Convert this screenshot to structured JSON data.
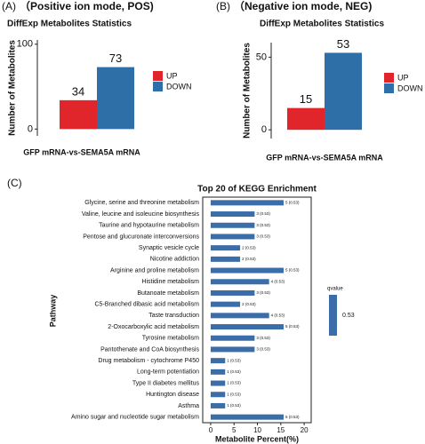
{
  "chart_data": [
    {
      "type": "bar",
      "panel": "(A)",
      "subtitle": "（Positive ion mode, POS)",
      "title": "DiffExp Metabolites Statistics",
      "y_label": "Number of Metabolites",
      "categories": [
        "GFP mRNA-vs-SEMA5A mRNA"
      ],
      "series": [
        {
          "name": "UP",
          "color": "#e0262a",
          "values": [
            34
          ]
        },
        {
          "name": "DOWN",
          "color": "#2f6fa7",
          "values": [
            73
          ]
        }
      ],
      "ylim": [
        -8,
        105
      ],
      "yticks": [
        0,
        100
      ]
    },
    {
      "type": "bar",
      "panel": "(B)",
      "subtitle": "（Negative ion mode, NEG)",
      "title": "DiffExp Metabolites Statistics",
      "y_label": "Number of Metabolites",
      "categories": [
        "GFP mRNA-vs-SEMA5A mRNA"
      ],
      "series": [
        {
          "name": "UP",
          "color": "#e0262a",
          "values": [
            15
          ]
        },
        {
          "name": "DOWN",
          "color": "#2f6fa7",
          "values": [
            53
          ]
        }
      ],
      "ylim": [
        -6,
        60
      ],
      "yticks": [
        0,
        50
      ]
    },
    {
      "type": "barh",
      "panel": "(C)",
      "title": "Top 20 of KEGG Enrichment",
      "x_label": "Metabolite Percent(%)",
      "y_label": "Pathway",
      "categories": [
        "Glycine, serine and threonine metabolism",
        "Valine, leucine and isoleucine biosynthesis",
        "Taurine and hypotaurine metabolism",
        "Pentose and glucuronate interconversions",
        "Synaptic vesicle cycle",
        "Nicotine addiction",
        "Arginine and proline metabolism",
        "Histidine metabolism",
        "Butanoate metabolism",
        "C5-Branched dibasic acid metabolism",
        "Taste transduction",
        "2-Oxocarboxylic acid metabolism",
        "Tyrosine metabolism",
        "Pantothenate and CoA biosynthesis",
        "Drug metabolism - cytochrome P450",
        "Long-term potentiation",
        "Type II diabetes mellitus",
        "Huntington disease",
        "Asthma",
        "Amino sugar and nucleotide sugar metabolism"
      ],
      "values": [
        15.6,
        9.4,
        9.4,
        9.4,
        6.3,
        6.3,
        15.6,
        12.5,
        9.4,
        6.3,
        12.5,
        15.6,
        9.4,
        9.4,
        3.1,
        3.1,
        3.1,
        3.1,
        3.1,
        15.6
      ],
      "bar_labels": [
        "5 (0.53)",
        "3 (0.53)",
        "3 (0.53)",
        "3 (0.53)",
        "2 (0.53)",
        "2 (0.53)",
        "5 (0.53)",
        "4 (0.53)",
        "3 (0.53)",
        "2 (0.53)",
        "4 (0.53)",
        "5 (0.53)",
        "3 (0.53)",
        "3 (0.53)",
        "1 (0.53)",
        "1 (0.53)",
        "1 (0.53)",
        "1 (0.53)",
        "1 (0.53)",
        "5 (0.53)"
      ],
      "color": "#3b6ea8",
      "xlim": [
        -1.7,
        21.5
      ],
      "xticks": [
        0,
        5,
        10,
        15,
        20
      ],
      "colorbar": {
        "title": "qvalue",
        "ticks": [
          0.53
        ],
        "color": "#3b6ea8"
      }
    }
  ]
}
